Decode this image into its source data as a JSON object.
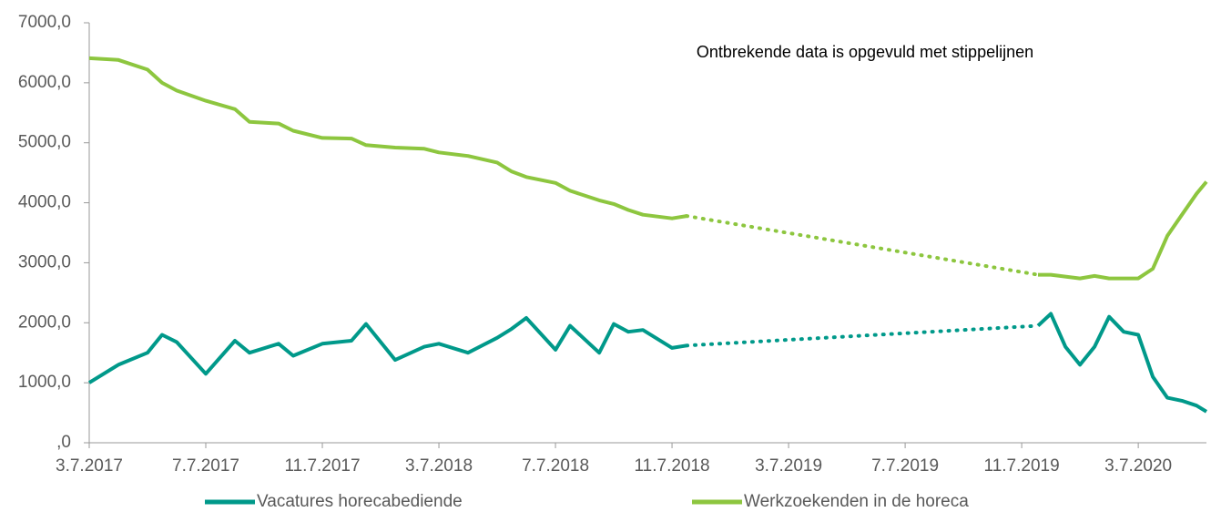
{
  "chart_data": {
    "type": "line",
    "annotation": "Ontbrekende  data  is opgevuld  met  stippelijnen",
    "x": [
      0,
      1,
      2,
      2.5,
      3,
      4,
      5,
      5.5,
      6.5,
      7,
      8,
      9,
      9.5,
      10.5,
      11.5,
      12,
      13,
      14,
      14.5,
      15,
      16,
      16.5,
      17.5,
      18,
      18.5,
      19,
      20,
      20.5,
      null,
      32.56,
      33,
      33.5,
      34,
      34.5,
      35,
      35.5,
      36,
      36.5,
      37,
      37.5,
      38,
      38.34
    ],
    "series": [
      {
        "name": "Vacatures horecabediende",
        "color": "#00998a",
        "values": [
          1000,
          1300,
          1500,
          1800,
          1680,
          1150,
          1700,
          1500,
          1650,
          1450,
          1650,
          1700,
          1980,
          1380,
          1600,
          1650,
          1500,
          1750,
          1900,
          2080,
          1550,
          1950,
          1500,
          1980,
          1850,
          1880,
          1580,
          1620,
          null,
          1950,
          2150,
          1600,
          1300,
          1600,
          2100,
          1850,
          1800,
          1100,
          750,
          700,
          620,
          520
        ]
      },
      {
        "name": "Werkzoekenden in de horeca",
        "color": "#8dc63f",
        "values": [
          6410,
          6380,
          6220,
          6000,
          5870,
          5700,
          5560,
          5350,
          5320,
          5200,
          5080,
          5070,
          4960,
          4920,
          4900,
          4840,
          4780,
          4670,
          4520,
          4430,
          4330,
          4200,
          4040,
          3980,
          3880,
          3800,
          3740,
          3780,
          null,
          2800,
          2800,
          2770,
          2740,
          2780,
          2740,
          2740,
          2740,
          2900,
          3450,
          3800,
          4150,
          4350
        ]
      }
    ],
    "xlim": [
      0,
      38.34
    ],
    "xticks": [
      {
        "value": 0,
        "label": "3.7.2017"
      },
      {
        "value": 4,
        "label": "7.7.2017"
      },
      {
        "value": 8,
        "label": "11.7.2017"
      },
      {
        "value": 12,
        "label": "3.7.2018"
      },
      {
        "value": 16,
        "label": "7.7.2018"
      },
      {
        "value": 20,
        "label": "11.7.2018"
      },
      {
        "value": 24,
        "label": "3.7.2019"
      },
      {
        "value": 28,
        "label": "7.7.2019"
      },
      {
        "value": 32,
        "label": "11.7.2019"
      },
      {
        "value": 36,
        "label": "3.7.2020"
      }
    ],
    "ylim": [
      0,
      7000
    ],
    "yticks": [
      {
        "value": 0,
        "label": ",0"
      },
      {
        "value": 1000,
        "label": "1000,0"
      },
      {
        "value": 2000,
        "label": "2000,0"
      },
      {
        "value": 3000,
        "label": "3000,0"
      },
      {
        "value": 4000,
        "label": "4000,0"
      },
      {
        "value": 5000,
        "label": "5000,0"
      },
      {
        "value": 6000,
        "label": "6000,0"
      },
      {
        "value": 7000,
        "label": "7000,0"
      }
    ],
    "legend": "bottom"
  }
}
